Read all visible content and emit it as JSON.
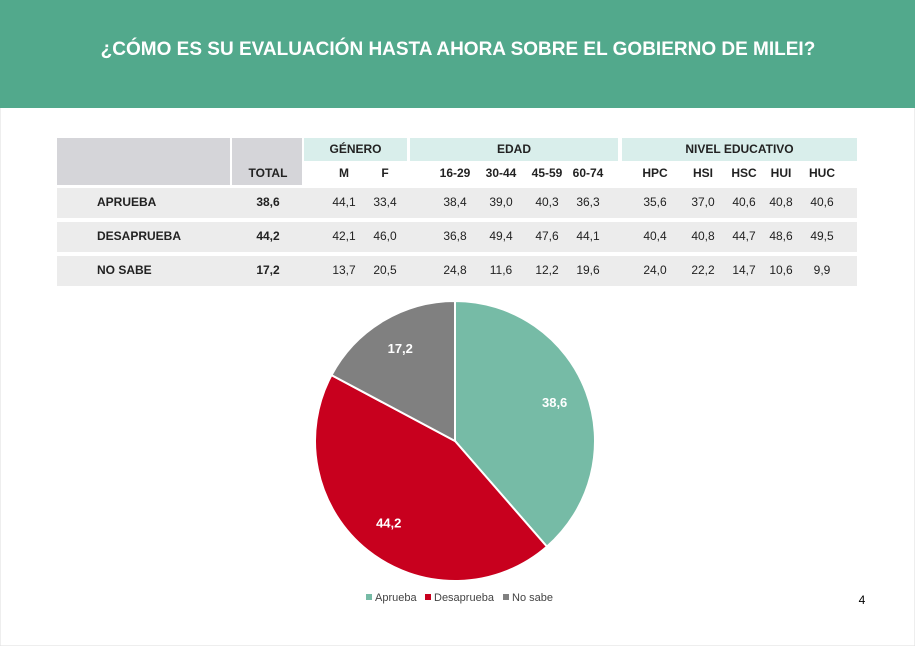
{
  "header": {
    "title": "¿CÓMO ES SU EVALUACIÓN HASTA AHORA SOBRE EL GOBIERNO DE MILEI?"
  },
  "table": {
    "group_headers": [
      "GÉNERO",
      "EDAD",
      "NIVEL EDUCATIVO"
    ],
    "columns": [
      "TOTAL",
      "M",
      "F",
      "16-29",
      "30-44",
      "45-59",
      "60-74",
      "HPC",
      "HSI",
      "HSC",
      "HUI",
      "HUC"
    ],
    "rows": [
      {
        "label": "APRUEBA",
        "cells": [
          "38,6",
          "44,1",
          "33,4",
          "38,4",
          "39,0",
          "40,3",
          "36,3",
          "35,6",
          "37,0",
          "40,6",
          "40,8",
          "40,6"
        ]
      },
      {
        "label": "DESAPRUEBA",
        "cells": [
          "44,2",
          "42,1",
          "46,0",
          "36,8",
          "49,4",
          "47,6",
          "44,1",
          "40,4",
          "40,8",
          "44,7",
          "48,6",
          "49,5"
        ]
      },
      {
        "label": "NO SABE",
        "cells": [
          "17,2",
          "13,7",
          "20,5",
          "24,8",
          "11,6",
          "12,2",
          "19,6",
          "24,0",
          "22,2",
          "14,7",
          "10,6",
          "9,9"
        ]
      }
    ]
  },
  "chart_data": {
    "type": "pie",
    "categories": [
      "Aprueba",
      "Desaprueba",
      "No sabe"
    ],
    "values": [
      38.6,
      44.2,
      17.2
    ],
    "value_labels": [
      "38,6",
      "44,2",
      "17,2"
    ],
    "colors": [
      "#76bba6",
      "#c8001e",
      "#808080"
    ],
    "legend": "bottom"
  },
  "page_number": 4
}
